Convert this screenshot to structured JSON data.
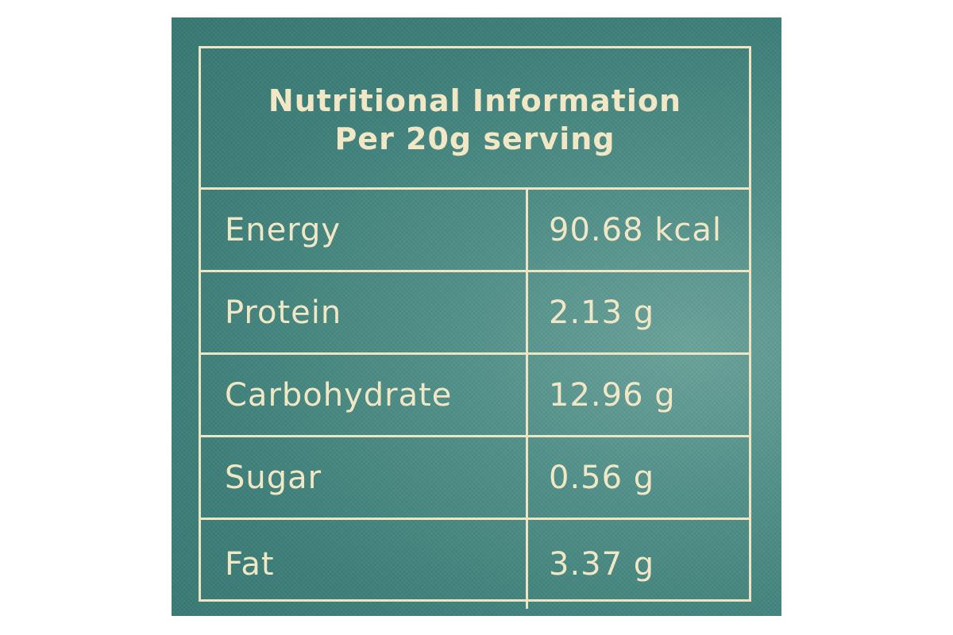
{
  "label": {
    "title": "Nutritional Information",
    "subtitle": "Per 20g serving",
    "rows": [
      {
        "nutrient": "Energy",
        "amount": "90.68 kcal"
      },
      {
        "nutrient": "Protein",
        "amount": "2.13 g"
      },
      {
        "nutrient": "Carbohydrate",
        "amount": "12.96 g"
      },
      {
        "nutrient": "Sugar",
        "amount": "0.56 g"
      },
      {
        "nutrient": "Fat",
        "amount": "3.37 g"
      }
    ]
  },
  "colors": {
    "background": "#3d7f79",
    "text": "#f6ecc9",
    "border": "#f3e9c8"
  }
}
